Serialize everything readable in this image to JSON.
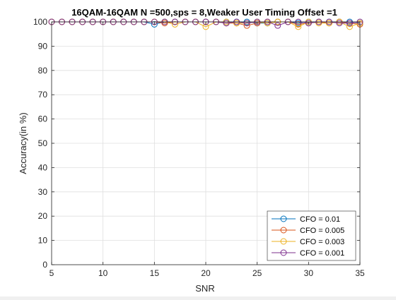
{
  "chart_data": {
    "type": "line",
    "title": "16QAM-16QAM N =500,sps = 8,Weaker User Timing Offset =1",
    "xlabel": "SNR",
    "ylabel": "Accuracy(in %)",
    "xlim": [
      5,
      35
    ],
    "ylim": [
      0,
      100
    ],
    "xticks": [
      5,
      10,
      15,
      20,
      25,
      30,
      35
    ],
    "yticks": [
      0,
      10,
      20,
      30,
      40,
      50,
      60,
      70,
      80,
      90,
      100
    ],
    "grid": true,
    "legend_location": "bottom-right",
    "marker": "circle",
    "x": [
      5,
      6,
      7,
      8,
      9,
      10,
      11,
      12,
      13,
      14,
      15,
      16,
      17,
      18,
      19,
      20,
      21,
      22,
      23,
      24,
      25,
      26,
      27,
      28,
      29,
      30,
      31,
      32,
      33,
      34,
      35
    ],
    "series": [
      {
        "name": "CFO = 0.01",
        "color": "#0072bd",
        "values": [
          100,
          100,
          100,
          100,
          100,
          100,
          100,
          100,
          100,
          100,
          99,
          100,
          100,
          100,
          100,
          100,
          100,
          100,
          100,
          100,
          99.5,
          99.5,
          100,
          100,
          99.5,
          100,
          100,
          100,
          100,
          100,
          99.5
        ]
      },
      {
        "name": "CFO = 0.005",
        "color": "#d95319",
        "values": [
          100,
          100,
          100,
          100,
          100,
          100,
          100,
          100,
          100,
          100,
          100,
          99.5,
          100,
          100,
          100,
          100,
          100,
          99.5,
          99.5,
          98.5,
          99.5,
          100,
          100,
          100,
          99,
          99.5,
          100,
          99.5,
          100,
          99.5,
          99
        ]
      },
      {
        "name": "CFO = 0.003",
        "color": "#edb120",
        "values": [
          100,
          100,
          100,
          100,
          100,
          100,
          100,
          100,
          100,
          100,
          100,
          100,
          99,
          100,
          100,
          98,
          100,
          100,
          99.5,
          99.5,
          100,
          99.5,
          100,
          100,
          98,
          100,
          99.5,
          99.5,
          100,
          98,
          99.5
        ]
      },
      {
        "name": "CFO = 0.001",
        "color": "#7e2f8e",
        "values": [
          100,
          100,
          100,
          100,
          100,
          100,
          100,
          100,
          100,
          100,
          100,
          100,
          100,
          100,
          100,
          100,
          100,
          99.5,
          100,
          99.5,
          100,
          100,
          98.5,
          100,
          100,
          99.5,
          100,
          100,
          99.5,
          99.5,
          100
        ]
      }
    ]
  }
}
